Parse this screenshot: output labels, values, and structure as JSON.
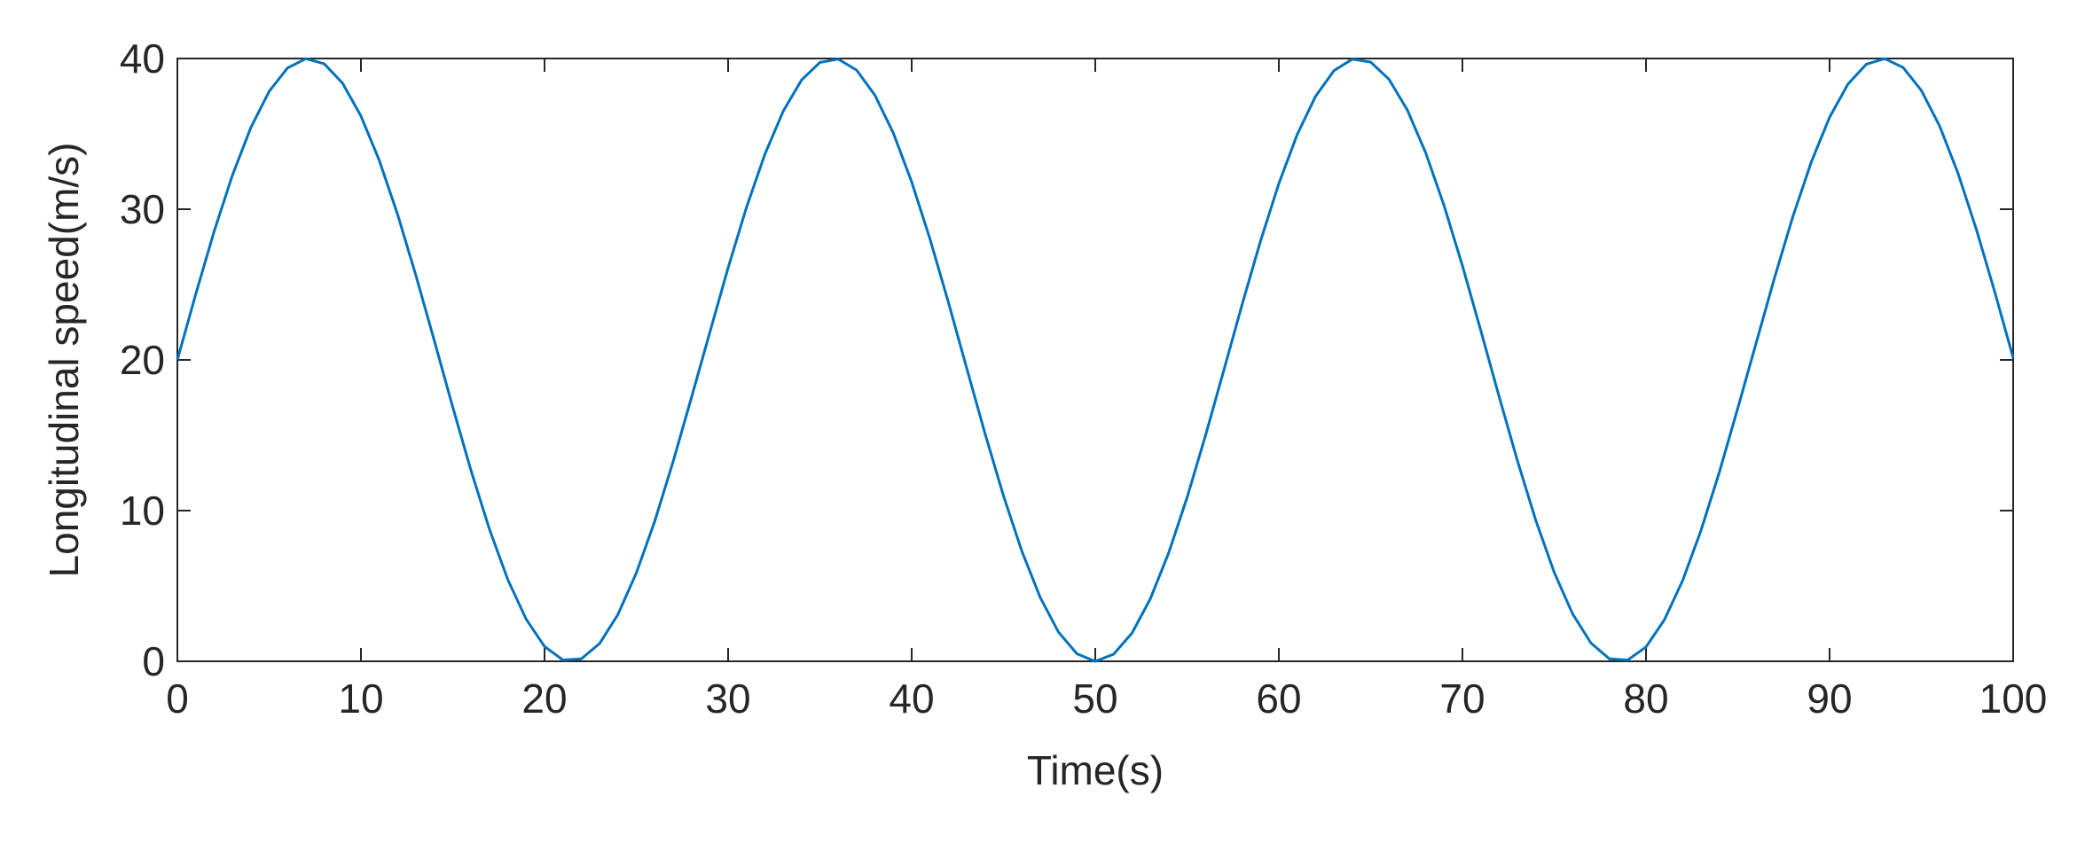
{
  "chart_data": {
    "type": "line",
    "x_label": "Time(s)",
    "y_label": "Longitudinal speed(m/s)",
    "x": [
      0,
      1,
      2,
      3,
      4,
      5,
      6,
      7,
      8,
      9,
      10,
      11,
      12,
      13,
      14,
      15,
      16,
      17,
      18,
      19,
      20,
      21,
      22,
      23,
      24,
      25,
      26,
      27,
      28,
      29,
      30,
      31,
      32,
      33,
      34,
      35,
      36,
      37,
      38,
      39,
      40,
      41,
      42,
      43,
      44,
      45,
      46,
      47,
      48,
      49,
      50,
      51,
      52,
      53,
      54,
      55,
      56,
      57,
      58,
      59,
      60,
      61,
      62,
      63,
      64,
      65,
      66,
      67,
      68,
      69,
      70,
      71,
      72,
      73,
      74,
      75,
      76,
      77,
      78,
      79,
      80,
      81,
      82,
      83,
      84,
      85,
      86,
      87,
      88,
      89,
      90,
      91,
      92,
      93,
      94,
      95,
      96,
      97,
      98,
      99,
      100
    ],
    "series": [
      {
        "color": "#0072bd",
        "values": [
          20,
          24.36,
          28.52,
          32.26,
          35.41,
          37.82,
          39.37,
          39.99,
          39.65,
          38.36,
          36.18,
          33.23,
          29.64,
          25.58,
          21.26,
          16.87,
          12.64,
          8.76,
          5.42,
          2.79,
          0.98,
          0.09,
          0.16,
          1.18,
          3.11,
          5.86,
          9.28,
          13.23,
          17.49,
          21.81,
          26.11,
          30.12,
          33.64,
          36.5,
          38.57,
          39.74,
          39.96,
          39.23,
          37.56,
          35.05,
          31.81,
          28.01,
          23.82,
          19.44,
          15.09,
          10.98,
          7.31,
          4.24,
          1.93,
          0.5,
          0,
          0.47,
          1.87,
          4.15,
          7.2,
          10.86,
          14.96,
          19.3,
          23.68,
          27.88,
          31.7,
          34.96,
          37.49,
          39.19,
          39.96,
          39.76,
          38.62,
          36.58,
          33.74,
          30.24,
          26.25,
          21.95,
          17.56,
          13.29,
          9.34,
          5.9,
          3.15,
          1.21,
          0.17,
          0.08,
          0.95,
          2.75,
          5.37,
          8.7,
          12.57,
          16.8,
          21.12,
          25.45,
          29.51,
          33.12,
          36.1,
          38.3,
          39.62,
          39.99,
          39.41,
          37.88,
          35.5,
          32.37,
          28.64,
          24.5,
          20.14
        ]
      }
    ],
    "xlim": [
      0,
      100
    ],
    "xticks": [
      0,
      10,
      20,
      30,
      40,
      50,
      60,
      70,
      80,
      90,
      100
    ],
    "ylim": [
      0,
      40
    ],
    "yticks": [
      0,
      10,
      20,
      30,
      40
    ]
  }
}
